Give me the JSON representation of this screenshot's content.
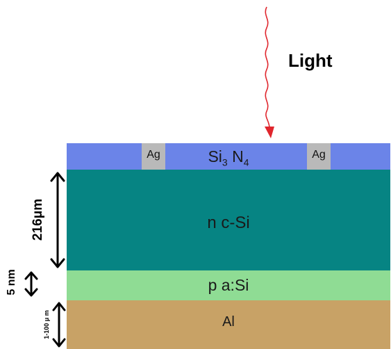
{
  "light": {
    "label": "Light",
    "ray_color": "#e0262d"
  },
  "layers": {
    "passivation": {
      "label_base": "Si",
      "label_sub1": "3",
      "label_mid": " N",
      "label_sub2": "4",
      "color": "#6b84e8"
    },
    "contacts": [
      {
        "label": "Ag"
      },
      {
        "label": "Ag"
      }
    ],
    "n_layer": {
      "label": "n c-Si",
      "color": "#068483"
    },
    "p_layer": {
      "label": "p a:Si",
      "color": "#8fdc94"
    },
    "back_contact": {
      "label": "Al",
      "color": "#c8a266"
    }
  },
  "dimensions": {
    "n_thickness": "216μm",
    "p_thickness": "5 nm",
    "al_thickness": "1-100 μ m"
  }
}
